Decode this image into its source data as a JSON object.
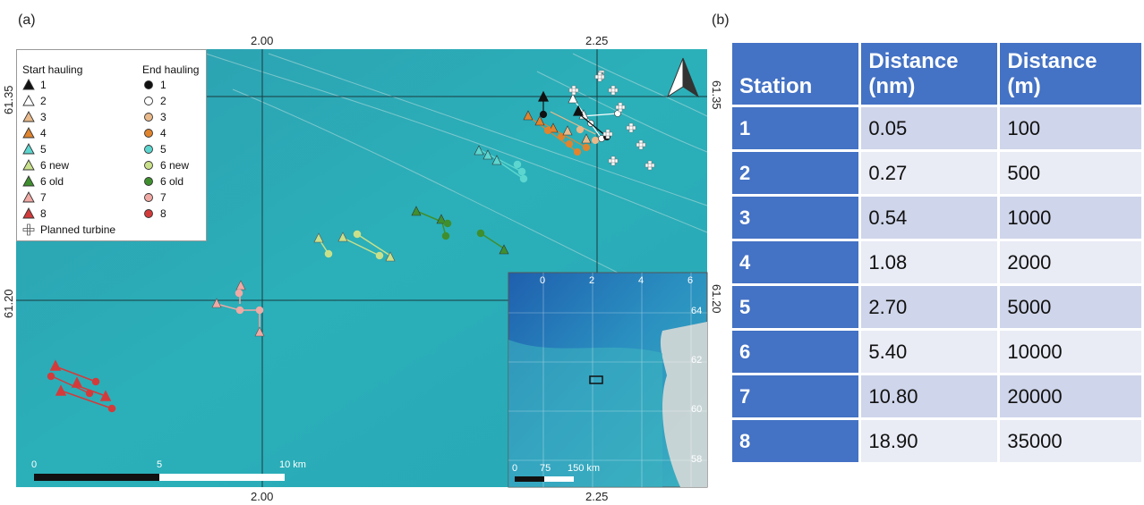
{
  "panels": {
    "a": "(a)",
    "b": "(b)"
  },
  "map": {
    "lon_labels_top": [
      "2.00",
      "2.25"
    ],
    "lon_labels_bottom": [
      "2.00",
      "2.25"
    ],
    "lat_labels_left": [
      "61.35",
      "61.20"
    ],
    "lat_labels_right": [
      "61.35",
      "61.20"
    ],
    "north_arrow": "north-arrow-icon",
    "scale_bar": {
      "labels": [
        "0",
        "5",
        "10 km"
      ]
    },
    "colors": {
      "sea": "#2aa8b4",
      "land_inset": "#cfd6d6"
    },
    "legend": {
      "start_title": "Start hauling",
      "end_title": "End hauling",
      "items": [
        {
          "start": "1",
          "end": "1",
          "color": "#111111"
        },
        {
          "start": "2",
          "end": "2",
          "color": "#ffffff"
        },
        {
          "start": "3",
          "end": "3",
          "color": "#e9b98a"
        },
        {
          "start": "4",
          "end": "4",
          "color": "#e0842e"
        },
        {
          "start": "5",
          "end": "5",
          "color": "#5cd6cf"
        },
        {
          "start": "6 new",
          "end": "6 new",
          "color": "#c9e08a"
        },
        {
          "start": "6 old",
          "end": "6 old",
          "color": "#3f8f2e"
        },
        {
          "start": "7",
          "end": "7",
          "color": "#f0a9a4"
        },
        {
          "start": "8",
          "end": "8",
          "color": "#d33b3b"
        }
      ],
      "turbine_label": "Planned turbine"
    },
    "inset": {
      "top_ticks": [
        "0",
        "2",
        "4",
        "6"
      ],
      "right_ticks": [
        "64",
        "62",
        "60",
        "58"
      ],
      "scale_labels": [
        "0",
        "75",
        "150 km"
      ]
    }
  },
  "table": {
    "headers": [
      "Station",
      "Distance (nm)",
      "Distance (m)"
    ],
    "rows": [
      [
        "1",
        "0.05",
        "100"
      ],
      [
        "2",
        "0.27",
        "500"
      ],
      [
        "3",
        "0.54",
        "1000"
      ],
      [
        "4",
        "1.08",
        "2000"
      ],
      [
        "5",
        "2.70",
        "5000"
      ],
      [
        "6",
        "5.40",
        "10000"
      ],
      [
        "7",
        "10.80",
        "20000"
      ],
      [
        "8",
        "18.90",
        "35000"
      ]
    ]
  }
}
